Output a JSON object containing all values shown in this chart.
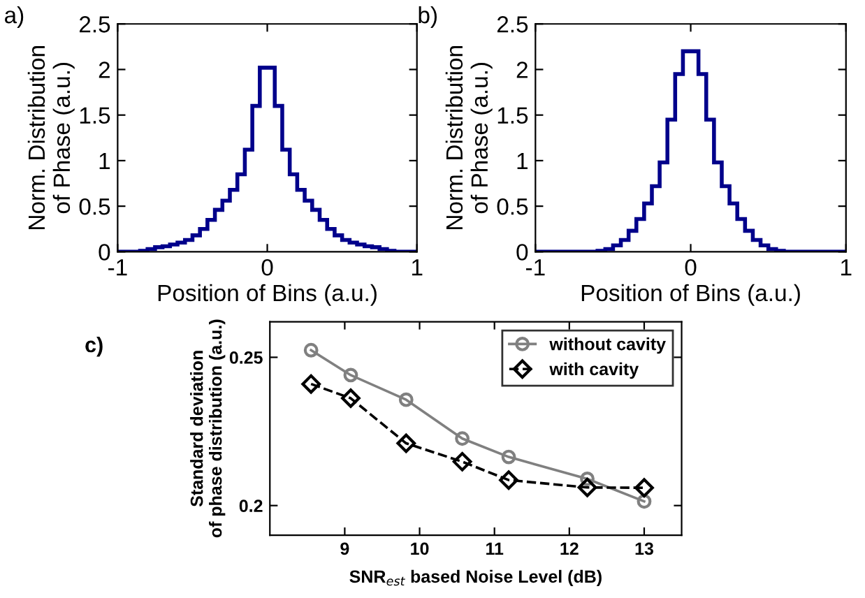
{
  "chart_data": [
    {
      "type": "histogram",
      "annotations": [
        "a)"
      ],
      "xlabel": "Position of Bins (a.u.)",
      "ylabel": "Norm. Distribution\nof Phase (a.u.)",
      "color": "#00008b",
      "bins": [
        -1.0,
        -0.95,
        -0.9,
        -0.85,
        -0.8,
        -0.75,
        -0.7,
        -0.65,
        -0.6,
        -0.55,
        -0.5,
        -0.45,
        -0.4,
        -0.35,
        -0.3,
        -0.25,
        -0.2,
        -0.15,
        -0.1,
        -0.05,
        0.0,
        0.05,
        0.1,
        0.15,
        0.2,
        0.25,
        0.3,
        0.35,
        0.4,
        0.45,
        0.5,
        0.55,
        0.6,
        0.65,
        0.7,
        0.75,
        0.8,
        0.85,
        0.9,
        0.95,
        1.0
      ],
      "values": [
        0,
        0,
        0,
        0.01,
        0.03,
        0.05,
        0.06,
        0.08,
        0.1,
        0.13,
        0.18,
        0.25,
        0.35,
        0.46,
        0.56,
        0.68,
        0.85,
        1.12,
        1.6,
        2.02,
        2.02,
        1.6,
        1.12,
        0.85,
        0.68,
        0.56,
        0.46,
        0.35,
        0.25,
        0.18,
        0.13,
        0.1,
        0.08,
        0.06,
        0.05,
        0.03,
        0.01,
        0,
        0,
        0
      ],
      "xlim": [
        -1,
        1
      ],
      "ylim": [
        0,
        2.5
      ],
      "xticks": [
        -1,
        0,
        1
      ],
      "yticks": [
        0,
        0.5,
        1,
        1.5,
        2,
        2.5
      ],
      "grid": false
    },
    {
      "type": "histogram",
      "annotations": [
        "b)"
      ],
      "xlabel": "Position of Bins (a.u.)",
      "ylabel": "Norm. Distribution\nof Phase (a.u.)",
      "color": "#00008b",
      "bins": [
        -1.0,
        -0.95,
        -0.9,
        -0.85,
        -0.8,
        -0.75,
        -0.7,
        -0.65,
        -0.6,
        -0.55,
        -0.5,
        -0.45,
        -0.4,
        -0.35,
        -0.3,
        -0.25,
        -0.2,
        -0.15,
        -0.1,
        -0.05,
        0.0,
        0.05,
        0.1,
        0.15,
        0.2,
        0.25,
        0.3,
        0.35,
        0.4,
        0.45,
        0.5,
        0.55,
        0.6,
        0.65,
        0.7,
        0.75,
        0.8,
        0.85,
        0.9,
        0.95,
        1.0
      ],
      "values": [
        0,
        0,
        0,
        0,
        0,
        0,
        0,
        0,
        0.01,
        0.03,
        0.07,
        0.13,
        0.23,
        0.36,
        0.53,
        0.72,
        0.98,
        1.45,
        1.95,
        2.2,
        2.2,
        1.95,
        1.45,
        0.98,
        0.72,
        0.53,
        0.36,
        0.23,
        0.13,
        0.07,
        0.03,
        0.01,
        0,
        0,
        0,
        0,
        0,
        0,
        0,
        0
      ],
      "xlim": [
        -1,
        1
      ],
      "ylim": [
        0,
        2.5
      ],
      "xticks": [
        -1,
        0,
        1
      ],
      "yticks": [
        0,
        0.5,
        1,
        1.5,
        2,
        2.5
      ],
      "grid": false
    },
    {
      "type": "line",
      "annotations": [
        "c)"
      ],
      "xlabel": "SNR$_{est}$ based Noise Level (dB)",
      "ylabel": "Standard deviation\nof phase distribution (a.u.)",
      "series": [
        {
          "name": "without cavity",
          "color": "#808080",
          "marker": "circle",
          "line_style": "solid",
          "x": [
            8.55,
            9.08,
            9.82,
            10.57,
            11.19,
            12.24,
            13.0
          ],
          "values": [
            0.2524,
            0.244,
            0.2357,
            0.2226,
            0.2164,
            0.209,
            0.2014
          ]
        },
        {
          "name": "with cavity",
          "color": "#000000",
          "marker": "diamond",
          "line_style": "dashed",
          "x": [
            8.55,
            9.08,
            9.82,
            10.57,
            11.19,
            12.24,
            13.0
          ],
          "values": [
            0.241,
            0.2362,
            0.221,
            0.2148,
            0.2086,
            0.2061,
            0.206
          ]
        }
      ],
      "xlim": [
        8,
        13.5
      ],
      "ylim": [
        0.19,
        0.262
      ],
      "xticks": [
        9,
        10,
        11,
        12,
        13
      ],
      "yticks": [
        0.2,
        0.25
      ],
      "grid": false,
      "legend": "top right"
    }
  ]
}
